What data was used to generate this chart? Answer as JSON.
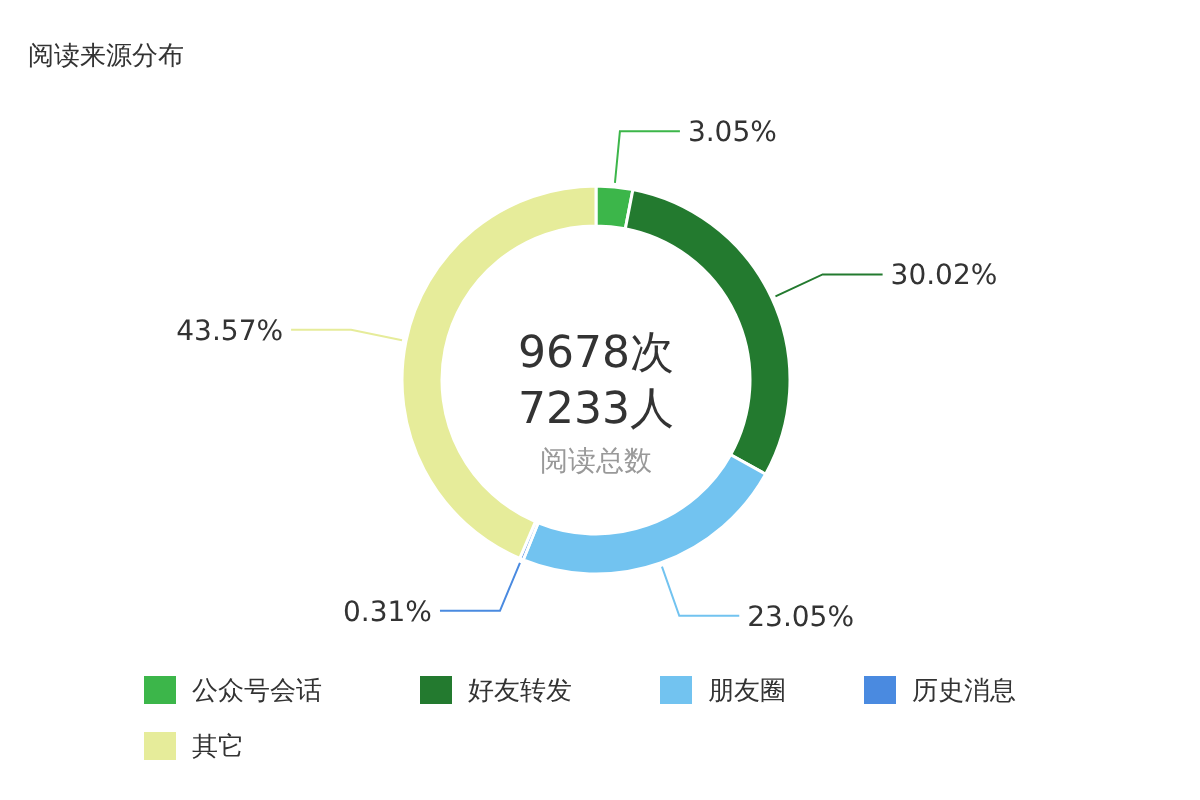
{
  "chart_data": {
    "type": "donut",
    "title": "阅读来源分布",
    "categories": [
      "公众号会话",
      "好友转发",
      "朋友圈",
      "历史消息",
      "其它"
    ],
    "values": [
      3.05,
      30.02,
      23.05,
      0.31,
      43.57
    ],
    "colors": [
      "#3cb64a",
      "#237a2f",
      "#72c3f0",
      "#4a8ae0",
      "#e6ec9a"
    ],
    "value_labels": [
      "3.05%",
      "30.02%",
      "23.05%",
      "0.31%",
      "43.57%"
    ],
    "annotations": [
      "9678次",
      "7233人",
      "阅读总数"
    ],
    "legend": "bottom"
  }
}
